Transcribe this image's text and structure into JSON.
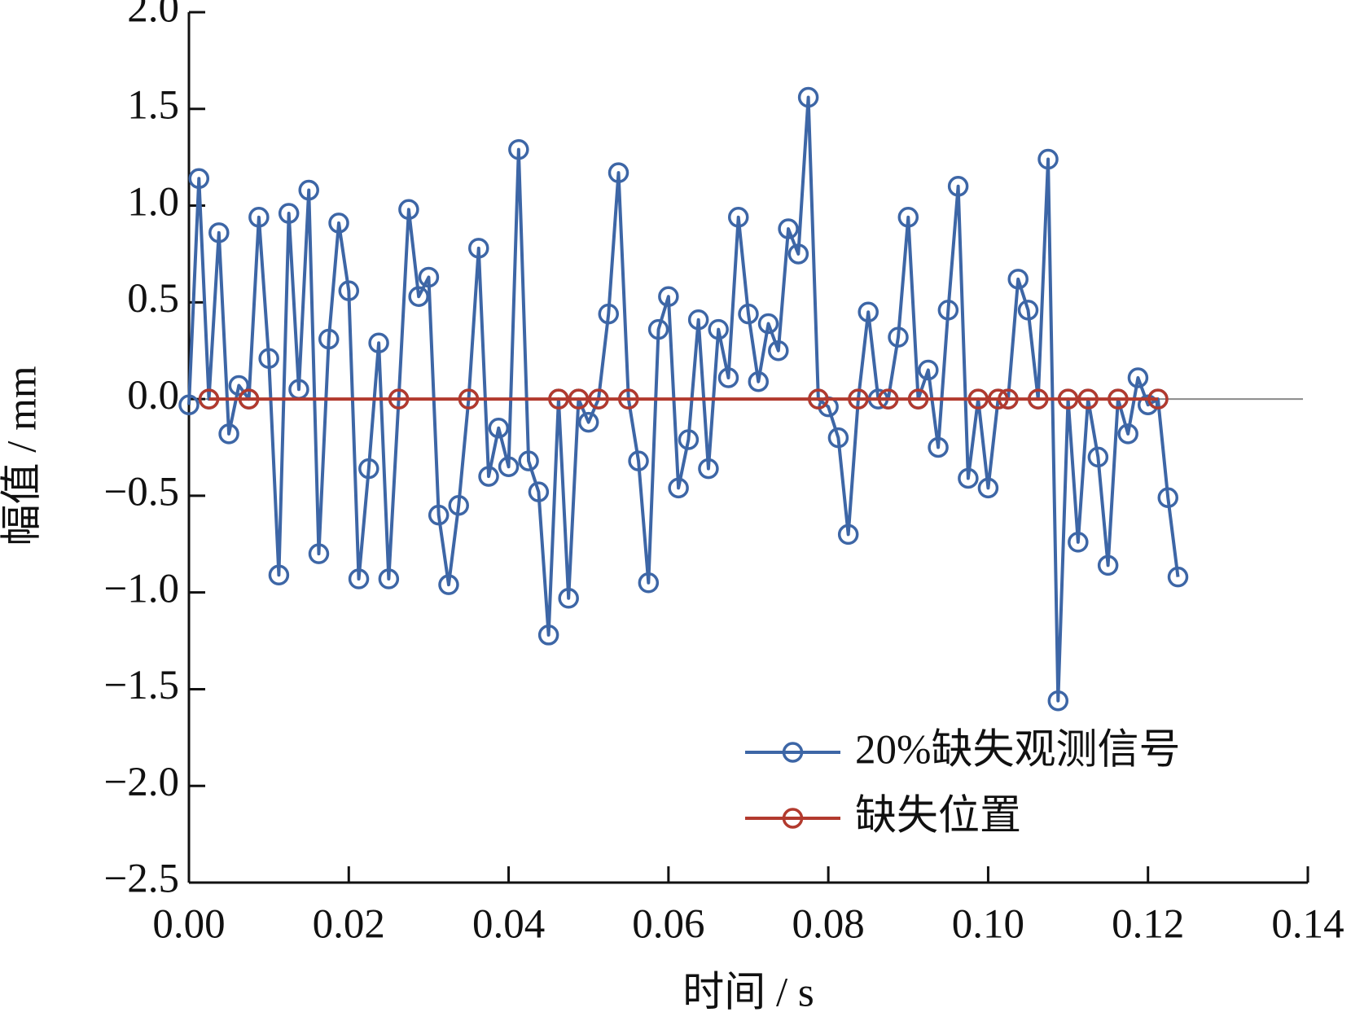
{
  "chart_data": {
    "type": "line",
    "xlabel": "时间 / s",
    "ylabel": "幅值 / mm",
    "xlim": [
      0,
      0.14
    ],
    "ylim": [
      -2.5,
      2.0
    ],
    "xticks": [
      {
        "value": 0,
        "label": "0.00"
      },
      {
        "value": 0.02,
        "label": "0.02"
      },
      {
        "value": 0.04,
        "label": "0.04"
      },
      {
        "value": 0.06,
        "label": "0.06"
      },
      {
        "value": 0.08,
        "label": "0.08"
      },
      {
        "value": 0.1,
        "label": "0.10"
      },
      {
        "value": 0.12,
        "label": "0.12"
      },
      {
        "value": 0.14,
        "label": "0.14"
      }
    ],
    "yticks": [
      {
        "value": 2,
        "label": "2.0"
      },
      {
        "value": 1.5,
        "label": "1.5"
      },
      {
        "value": 1,
        "label": "1.0"
      },
      {
        "value": 0.5,
        "label": "0.5"
      },
      {
        "value": 0,
        "label": "0.0"
      },
      {
        "value": -0.5,
        "label": "−0.5"
      },
      {
        "value": -1,
        "label": "−1.0"
      },
      {
        "value": -1.5,
        "label": "−1.5"
      },
      {
        "value": -2,
        "label": "−2.0"
      },
      {
        "value": -2.5,
        "label": "−2.5"
      }
    ],
    "grid": false,
    "legend": "lower right",
    "reference_line": {
      "y": 0,
      "color": "#8a8a8a"
    },
    "series": [
      {
        "name": "20%缺失观测信号",
        "color": "#3d66a6",
        "x": [
          0,
          0.00125,
          0.0025,
          0.00375,
          0.005,
          0.00625,
          0.0075,
          0.00875,
          0.01,
          0.01125,
          0.0125,
          0.01375,
          0.015,
          0.01625,
          0.0175,
          0.01875,
          0.02,
          0.02125,
          0.0225,
          0.02375,
          0.025,
          0.02625,
          0.0275,
          0.02875,
          0.03,
          0.03125,
          0.0325,
          0.03375,
          0.035,
          0.03625,
          0.0375,
          0.03875,
          0.04,
          0.04125,
          0.0425,
          0.04375,
          0.045,
          0.04625,
          0.0475,
          0.04875,
          0.05,
          0.05125,
          0.0525,
          0.05375,
          0.055,
          0.05625,
          0.0575,
          0.05875,
          0.06,
          0.06125,
          0.0625,
          0.06375,
          0.065,
          0.06625,
          0.0675,
          0.06875,
          0.07,
          0.07125,
          0.0725,
          0.07375,
          0.075,
          0.07625,
          0.0775,
          0.07875,
          0.08,
          0.08125,
          0.0825,
          0.08375,
          0.085,
          0.08625,
          0.0875,
          0.08875,
          0.09,
          0.09125,
          0.0925,
          0.09375,
          0.095,
          0.09625,
          0.0975,
          0.09875,
          0.1,
          0.10125,
          0.1025,
          0.10375,
          0.105,
          0.10625,
          0.1075,
          0.10875,
          0.11,
          0.11125,
          0.1125,
          0.11375,
          0.115,
          0.11625,
          0.1175,
          0.11875,
          0.12,
          0.12125,
          0.1225,
          0.12375
        ],
        "values": [
          -0.03,
          1.14,
          0,
          0.86,
          -0.18,
          0.07,
          0,
          0.94,
          0.21,
          -0.91,
          0.96,
          0.05,
          1.08,
          -0.8,
          0.31,
          0.91,
          0.56,
          -0.93,
          -0.36,
          0.29,
          -0.93,
          0,
          0.98,
          0.53,
          0.63,
          -0.6,
          -0.96,
          -0.55,
          0,
          0.78,
          -0.4,
          -0.15,
          -0.35,
          1.29,
          -0.32,
          -0.48,
          -1.22,
          0,
          -1.03,
          0,
          -0.12,
          0,
          0.44,
          1.17,
          0,
          -0.32,
          -0.95,
          0.36,
          0.53,
          -0.46,
          -0.21,
          0.41,
          -0.36,
          0.36,
          0.11,
          0.94,
          0.44,
          0.09,
          0.39,
          0.25,
          0.88,
          0.75,
          1.56,
          0,
          -0.04,
          -0.2,
          -0.7,
          0,
          0.45,
          0,
          0,
          0.32,
          0.94,
          0,
          0.15,
          -0.25,
          0.46,
          1.1,
          -0.41,
          0,
          -0.46,
          0,
          0,
          0.62,
          0.46,
          0,
          1.24,
          -1.56,
          0,
          -0.74,
          0,
          -0.3,
          -0.86,
          0,
          -0.18,
          0.11,
          -0.03,
          0,
          -0.51,
          -0.92
        ]
      },
      {
        "name": "缺失位置",
        "color": "#b23a2e",
        "x": [
          0.0025,
          0.0075,
          0.02625,
          0.035,
          0.04625,
          0.04875,
          0.05125,
          0.055,
          0.07875,
          0.08375,
          0.0875,
          0.09125,
          0.09875,
          0.10125,
          0.1025,
          0.10625,
          0.11,
          0.1125,
          0.11625,
          0.12125
        ],
        "values": [
          0,
          0,
          0,
          0,
          0,
          0,
          0,
          0,
          0,
          0,
          0,
          0,
          0,
          0,
          0,
          0,
          0,
          0,
          0,
          0
        ]
      }
    ]
  }
}
